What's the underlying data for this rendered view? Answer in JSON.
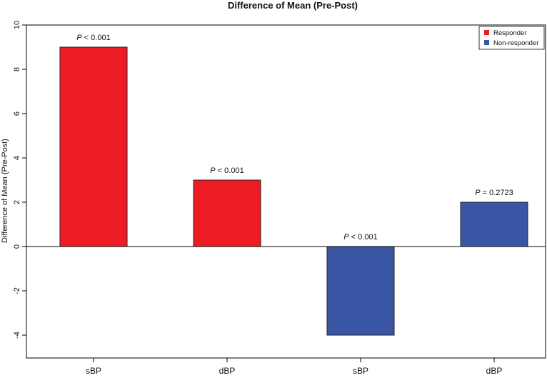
{
  "chart_data": {
    "type": "bar",
    "title": "Difference of Mean (Pre-Post)",
    "xlabel": "",
    "ylabel": "Difference of Mean (Pre-Post)",
    "ylim": [
      -5,
      10
    ],
    "yticks": [
      -4,
      -2,
      0,
      2,
      4,
      6,
      8,
      10
    ],
    "ytick_labels": [
      "-4",
      "-2",
      "0",
      "2",
      "4",
      "6",
      "8",
      "10"
    ],
    "categories": [
      "sBP",
      "dBP",
      "sBP",
      "dBP"
    ],
    "values": [
      9,
      3,
      -4,
      2
    ],
    "groups": [
      "Responder",
      "Responder",
      "Non-responder",
      "Non-responder"
    ],
    "annotations": [
      {
        "p": "P",
        "text": " < 0.001"
      },
      {
        "p": "P",
        "text": " < 0.001"
      },
      {
        "p": "P",
        "text": " < 0.001"
      },
      {
        "p": "P",
        "text": " = 0.2723"
      }
    ],
    "legend": {
      "position": "top-right",
      "items": [
        {
          "label": "Responder",
          "color": "#ed1c24"
        },
        {
          "label": "Non-responder",
          "color": "#3a55a4"
        }
      ]
    },
    "colors": {
      "Responder": "#ed1c24",
      "Non-responder": "#3a55a4",
      "bar_border": "#222222",
      "baseline": "#000000"
    },
    "grid": false
  }
}
